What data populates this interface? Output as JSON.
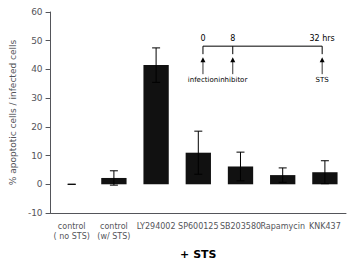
{
  "chart_data": {
    "type": "bar",
    "categories": [
      "control\n( no STS)",
      "control\n(w/ STS)",
      "LY294002",
      "SP600125",
      "SB203580",
      "Rapamycin",
      "KNK437"
    ],
    "values": [
      0,
      2.2,
      41.5,
      11.0,
      6.2,
      3.2,
      4.2
    ],
    "errors": [
      0,
      2.5,
      6.0,
      7.5,
      5.0,
      2.5,
      4.0
    ],
    "color": "#111111",
    "ylabel": "% apoptotic cells / infected cells",
    "xlabel": "+ STS",
    "ylim": [
      -10,
      60
    ],
    "yticks": [
      -10,
      0,
      10,
      20,
      30,
      40,
      50,
      60
    ],
    "grid": false,
    "annotations": [
      {
        "label": "0",
        "text": "infection"
      },
      {
        "label": "8",
        "text": "inhibitor"
      },
      {
        "label": "32 hrs",
        "text": "STS"
      }
    ]
  }
}
